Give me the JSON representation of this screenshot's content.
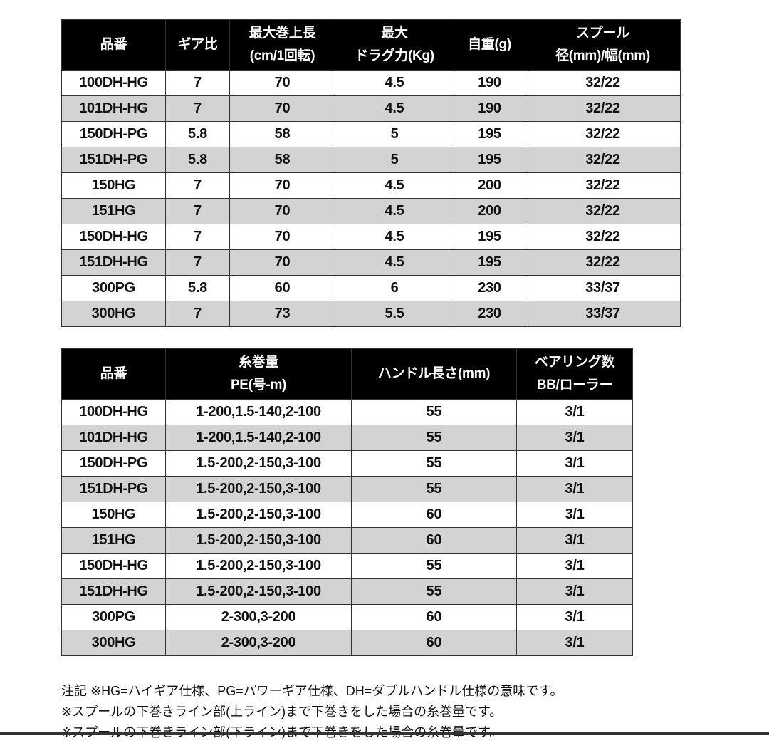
{
  "table1": {
    "headers": [
      [
        "品番"
      ],
      [
        "ギア比"
      ],
      [
        "最大巻上長",
        "(cm/1回転)"
      ],
      [
        "最大",
        "ドラグ力(Kg)"
      ],
      [
        "自重(g)"
      ],
      [
        "スプール",
        "径(mm)/幅(mm)"
      ]
    ],
    "rows": [
      [
        "100DH-HG",
        "7",
        "70",
        "4.5",
        "190",
        "32/22"
      ],
      [
        "101DH-HG",
        "7",
        "70",
        "4.5",
        "190",
        "32/22"
      ],
      [
        "150DH-PG",
        "5.8",
        "58",
        "5",
        "195",
        "32/22"
      ],
      [
        "151DH-PG",
        "5.8",
        "58",
        "5",
        "195",
        "32/22"
      ],
      [
        "150HG",
        "7",
        "70",
        "4.5",
        "200",
        "32/22"
      ],
      [
        "151HG",
        "7",
        "70",
        "4.5",
        "200",
        "32/22"
      ],
      [
        "150DH-HG",
        "7",
        "70",
        "4.5",
        "195",
        "32/22"
      ],
      [
        "151DH-HG",
        "7",
        "70",
        "4.5",
        "195",
        "32/22"
      ],
      [
        "300PG",
        "5.8",
        "60",
        "6",
        "230",
        "33/37"
      ],
      [
        "300HG",
        "7",
        "73",
        "5.5",
        "230",
        "33/37"
      ]
    ]
  },
  "table2": {
    "headers": [
      [
        "品番"
      ],
      [
        "糸巻量",
        "PE(号-m)"
      ],
      [
        "ハンドル長さ(mm)"
      ],
      [
        "ベアリング数",
        "BB/ローラー"
      ]
    ],
    "rows": [
      [
        "100DH-HG",
        "1-200,1.5-140,2-100",
        "55",
        "3/1"
      ],
      [
        "101DH-HG",
        "1-200,1.5-140,2-100",
        "55",
        "3/1"
      ],
      [
        "150DH-PG",
        "1.5-200,2-150,3-100",
        "55",
        "3/1"
      ],
      [
        "151DH-PG",
        "1.5-200,2-150,3-100",
        "55",
        "3/1"
      ],
      [
        "150HG",
        "1.5-200,2-150,3-100",
        "60",
        "3/1"
      ],
      [
        "151HG",
        "1.5-200,2-150,3-100",
        "60",
        "3/1"
      ],
      [
        "150DH-HG",
        "1.5-200,2-150,3-100",
        "55",
        "3/1"
      ],
      [
        "151DH-HG",
        "1.5-200,2-150,3-100",
        "55",
        "3/1"
      ],
      [
        "300PG",
        "2-300,3-200",
        "60",
        "3/1"
      ],
      [
        "300HG",
        "2-300,3-200",
        "60",
        "3/1"
      ]
    ]
  },
  "notes": [
    "注記 ※HG=ハイギア仕様、PG=パワーギア仕様、DH=ダブルハンドル仕様の意味です。",
    "※スプールの下巻きライン部(上ライン)まで下巻きをした場合の糸巻量です。",
    "※スプールの下巻きライン部(下ライン)まで下巻きをした場合の糸巻量です。"
  ],
  "colors": {
    "header_bg": "#000000",
    "header_text": "#ffffff",
    "alt_row": "#d3d3d3"
  }
}
